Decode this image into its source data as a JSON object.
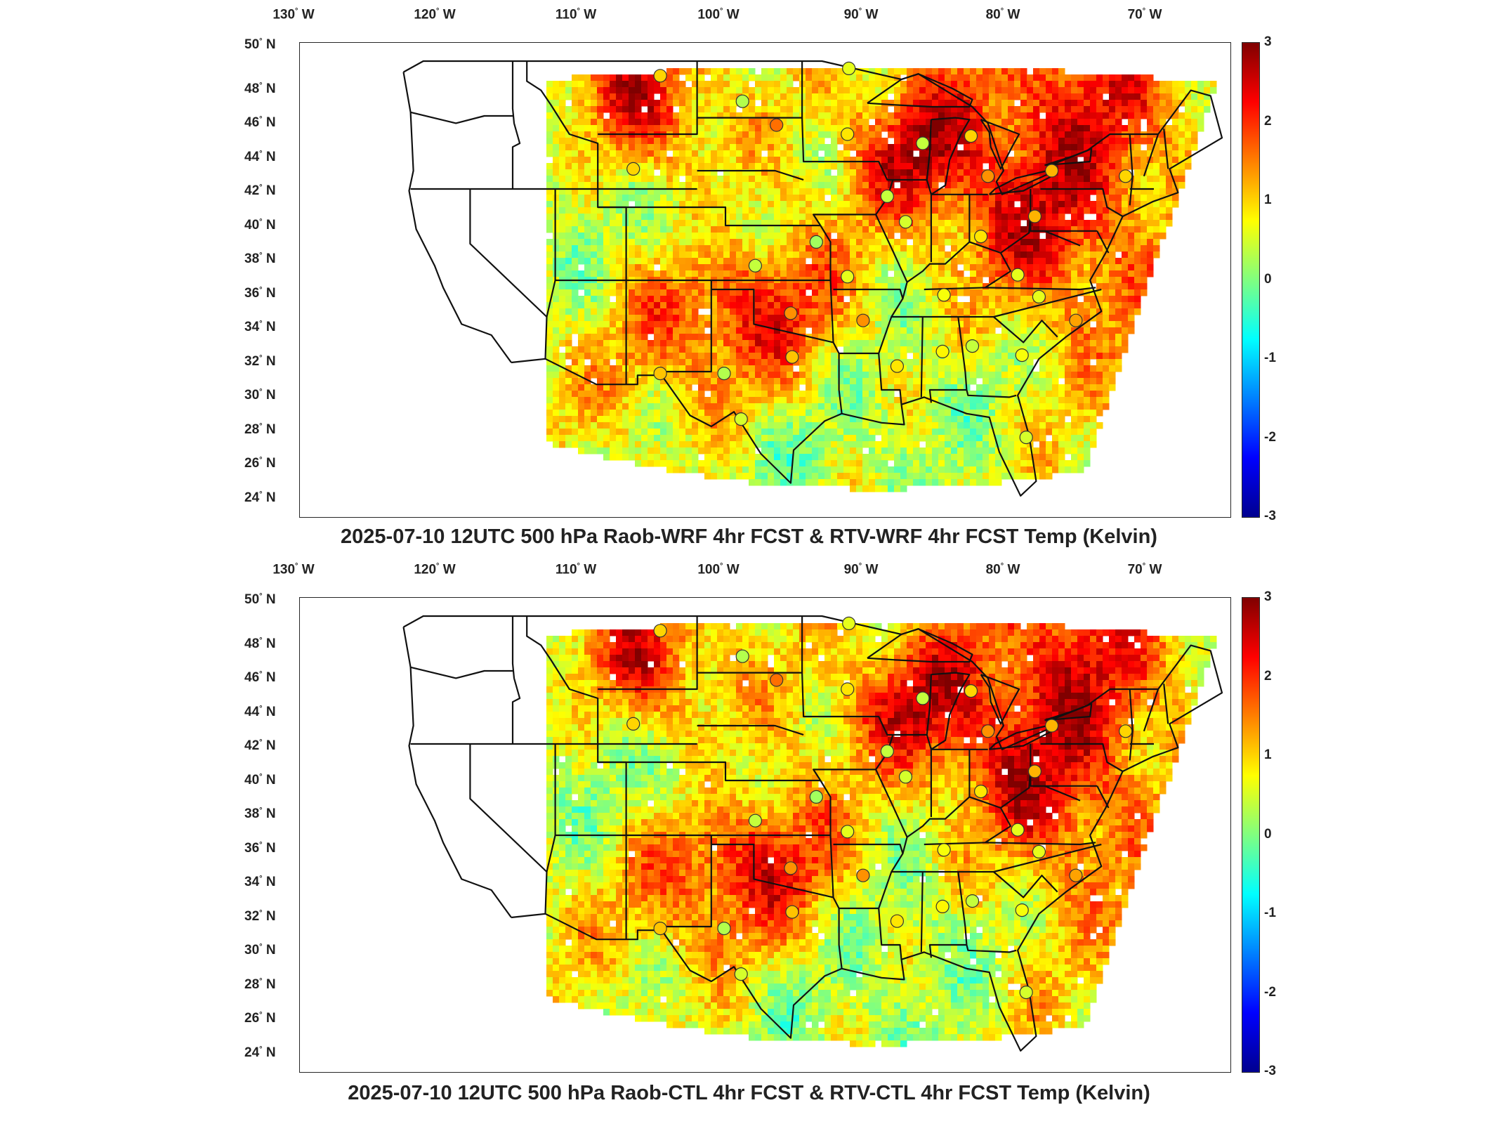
{
  "lon_labels": [
    {
      "deg": "130",
      "hem": "W"
    },
    {
      "deg": "120",
      "hem": "W"
    },
    {
      "deg": "110",
      "hem": "W"
    },
    {
      "deg": "100",
      "hem": "W"
    },
    {
      "deg": "90",
      "hem": "W"
    },
    {
      "deg": "80",
      "hem": "W"
    },
    {
      "deg": "70",
      "hem": "W"
    }
  ],
  "lat_labels": [
    {
      "deg": "50",
      "hem": "N"
    },
    {
      "deg": "48",
      "hem": "N"
    },
    {
      "deg": "46",
      "hem": "N"
    },
    {
      "deg": "44",
      "hem": "N"
    },
    {
      "deg": "42",
      "hem": "N"
    },
    {
      "deg": "40",
      "hem": "N"
    },
    {
      "deg": "38",
      "hem": "N"
    },
    {
      "deg": "36",
      "hem": "N"
    },
    {
      "deg": "34",
      "hem": "N"
    },
    {
      "deg": "32",
      "hem": "N"
    },
    {
      "deg": "30",
      "hem": "N"
    },
    {
      "deg": "28",
      "hem": "N"
    },
    {
      "deg": "26",
      "hem": "N"
    },
    {
      "deg": "24",
      "hem": "N"
    }
  ],
  "colorbar": {
    "ticks": [
      "3",
      "2",
      "1",
      "0",
      "-1",
      "-2",
      "-3"
    ],
    "min": -3,
    "max": 3,
    "colors": [
      "#00008f",
      "#0000ff",
      "#0080ff",
      "#00ffff",
      "#80ff80",
      "#ffff00",
      "#ff8000",
      "#ff0000",
      "#800000"
    ]
  },
  "panels": [
    {
      "title": "2025-07-10 12UTC 500 hPa Raob-WRF 4hr FCST & RTV-WRF 4hr FCST Temp (Kelvin)",
      "stations": [
        {
          "lon": -106.6,
          "lat": 48.2,
          "value": 1.0
        },
        {
          "lon": -108.5,
          "lat": 43.1,
          "value": 1.0
        },
        {
          "lon": -100.8,
          "lat": 46.8,
          "value": 0.3
        },
        {
          "lon": -98.4,
          "lat": 45.5,
          "value": 1.6
        },
        {
          "lon": -93.3,
          "lat": 48.6,
          "value": 0.6
        },
        {
          "lon": -93.4,
          "lat": 45.0,
          "value": 0.9
        },
        {
          "lon": -88.1,
          "lat": 44.5,
          "value": 0.4
        },
        {
          "lon": -84.7,
          "lat": 44.9,
          "value": 1.0
        },
        {
          "lon": -83.5,
          "lat": 42.7,
          "value": 1.4
        },
        {
          "lon": -79.0,
          "lat": 43.0,
          "value": 1.2
        },
        {
          "lon": -73.8,
          "lat": 42.7,
          "value": 1.0
        },
        {
          "lon": -90.6,
          "lat": 41.6,
          "value": 0.4
        },
        {
          "lon": -89.3,
          "lat": 40.2,
          "value": 0.5
        },
        {
          "lon": -84.0,
          "lat": 39.4,
          "value": 0.9
        },
        {
          "lon": -80.2,
          "lat": 40.5,
          "value": 1.2
        },
        {
          "lon": -95.6,
          "lat": 39.1,
          "value": 0.2
        },
        {
          "lon": -99.9,
          "lat": 37.8,
          "value": 0.4
        },
        {
          "lon": -93.4,
          "lat": 37.2,
          "value": 0.6
        },
        {
          "lon": -86.6,
          "lat": 36.2,
          "value": 0.7
        },
        {
          "lon": -81.4,
          "lat": 37.3,
          "value": 0.6
        },
        {
          "lon": -79.9,
          "lat": 36.1,
          "value": 0.6
        },
        {
          "lon": -77.3,
          "lat": 34.8,
          "value": 1.3
        },
        {
          "lon": -97.4,
          "lat": 35.2,
          "value": 1.4
        },
        {
          "lon": -92.3,
          "lat": 34.8,
          "value": 1.4
        },
        {
          "lon": -97.3,
          "lat": 32.8,
          "value": 1.1
        },
        {
          "lon": -89.9,
          "lat": 32.3,
          "value": 0.9
        },
        {
          "lon": -86.7,
          "lat": 33.1,
          "value": 0.8
        },
        {
          "lon": -84.6,
          "lat": 33.4,
          "value": 0.4
        },
        {
          "lon": -81.1,
          "lat": 32.9,
          "value": 0.7
        },
        {
          "lon": -106.6,
          "lat": 31.9,
          "value": 1.1
        },
        {
          "lon": -102.1,
          "lat": 31.9,
          "value": 0.3
        },
        {
          "lon": -100.9,
          "lat": 29.4,
          "value": 0.5
        },
        {
          "lon": -80.8,
          "lat": 28.4,
          "value": 0.5
        }
      ]
    },
    {
      "title": "2025-07-10 12UTC 500 hPa Raob-CTL 4hr FCST & RTV-CTL 4hr FCST Temp (Kelvin)",
      "stations": [
        {
          "lon": -106.6,
          "lat": 48.2,
          "value": 1.0
        },
        {
          "lon": -108.5,
          "lat": 43.1,
          "value": 1.0
        },
        {
          "lon": -100.8,
          "lat": 46.8,
          "value": 0.3
        },
        {
          "lon": -98.4,
          "lat": 45.5,
          "value": 1.6
        },
        {
          "lon": -93.3,
          "lat": 48.6,
          "value": 0.6
        },
        {
          "lon": -93.4,
          "lat": 45.0,
          "value": 0.9
        },
        {
          "lon": -88.1,
          "lat": 44.5,
          "value": 0.4
        },
        {
          "lon": -84.7,
          "lat": 44.9,
          "value": 1.0
        },
        {
          "lon": -83.5,
          "lat": 42.7,
          "value": 1.4
        },
        {
          "lon": -79.0,
          "lat": 43.0,
          "value": 1.2
        },
        {
          "lon": -73.8,
          "lat": 42.7,
          "value": 1.0
        },
        {
          "lon": -90.6,
          "lat": 41.6,
          "value": 0.4
        },
        {
          "lon": -89.3,
          "lat": 40.2,
          "value": 0.5
        },
        {
          "lon": -84.0,
          "lat": 39.4,
          "value": 0.9
        },
        {
          "lon": -80.2,
          "lat": 40.5,
          "value": 1.2
        },
        {
          "lon": -95.6,
          "lat": 39.1,
          "value": 0.2
        },
        {
          "lon": -99.9,
          "lat": 37.8,
          "value": 0.4
        },
        {
          "lon": -93.4,
          "lat": 37.2,
          "value": 0.6
        },
        {
          "lon": -86.6,
          "lat": 36.2,
          "value": 0.7
        },
        {
          "lon": -81.4,
          "lat": 37.3,
          "value": 0.6
        },
        {
          "lon": -79.9,
          "lat": 36.1,
          "value": 0.6
        },
        {
          "lon": -77.3,
          "lat": 34.8,
          "value": 1.3
        },
        {
          "lon": -97.4,
          "lat": 35.2,
          "value": 1.4
        },
        {
          "lon": -92.3,
          "lat": 34.8,
          "value": 1.4
        },
        {
          "lon": -97.3,
          "lat": 32.8,
          "value": 1.1
        },
        {
          "lon": -89.9,
          "lat": 32.3,
          "value": 0.9
        },
        {
          "lon": -86.7,
          "lat": 33.1,
          "value": 0.8
        },
        {
          "lon": -84.6,
          "lat": 33.4,
          "value": 0.4
        },
        {
          "lon": -81.1,
          "lat": 32.9,
          "value": 0.7
        },
        {
          "lon": -106.6,
          "lat": 31.9,
          "value": 1.1
        },
        {
          "lon": -102.1,
          "lat": 31.9,
          "value": 0.3
        },
        {
          "lon": -100.9,
          "lat": 29.4,
          "value": 0.5
        },
        {
          "lon": -80.8,
          "lat": 28.4,
          "value": 0.5
        }
      ]
    }
  ]
}
